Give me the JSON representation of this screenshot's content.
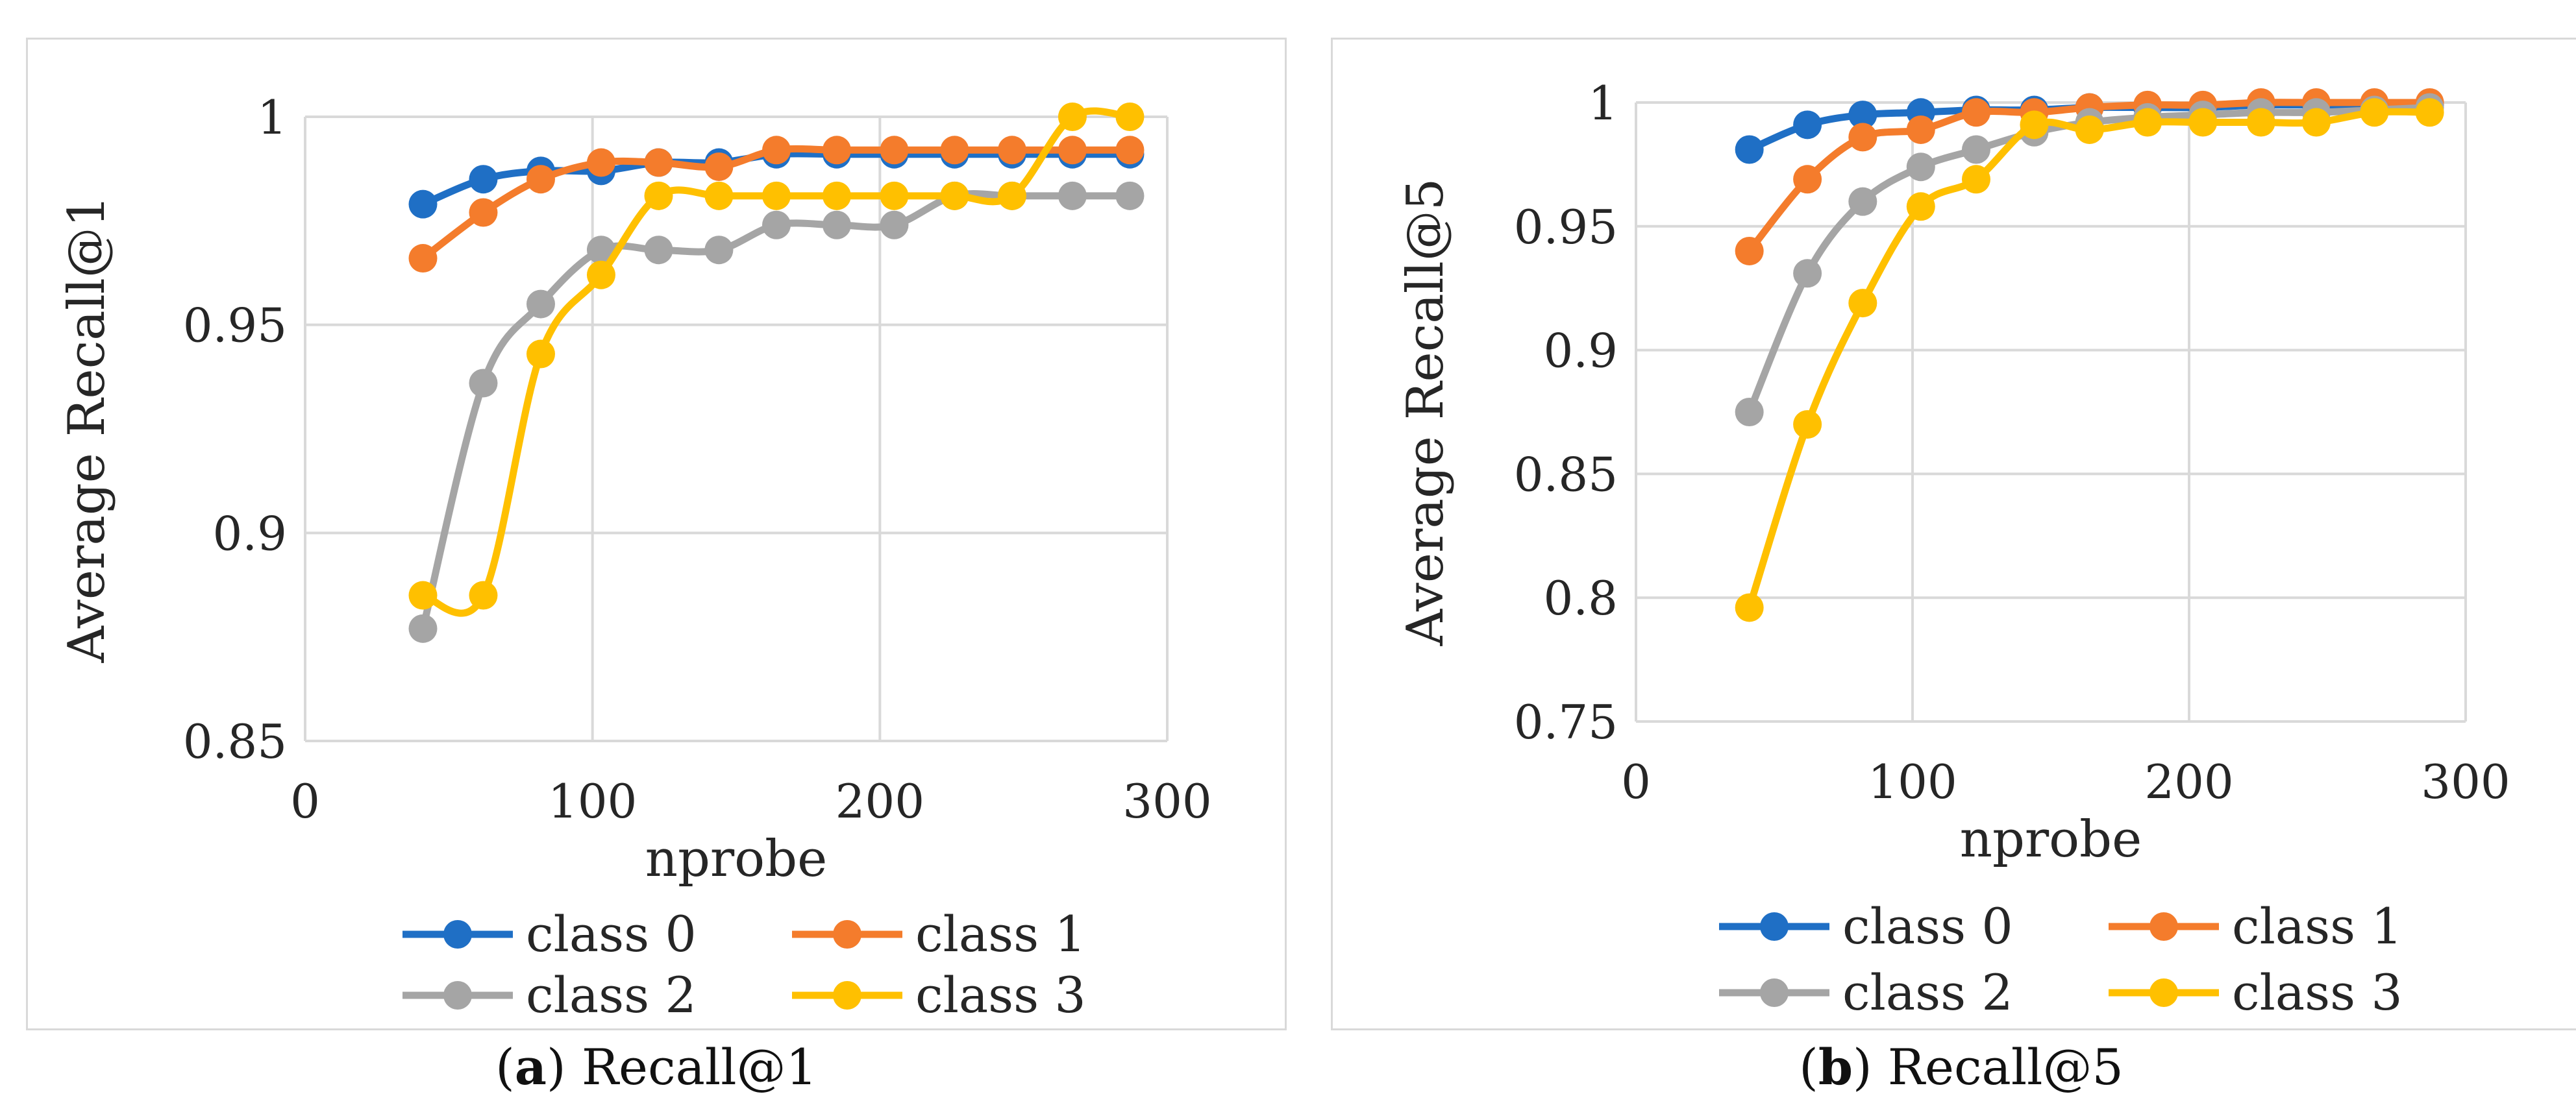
{
  "colors": {
    "class0": "#1f6fc5",
    "class1": "#f47c2c",
    "class2": "#a5a5a5",
    "class3": "#ffc000",
    "grid": "#d9d9d9"
  },
  "panels": [
    {
      "label": "a",
      "caption": "Recall@1"
    },
    {
      "label": "b",
      "caption": "Recall@5"
    }
  ],
  "chart_data": [
    {
      "type": "line",
      "title": "",
      "xlabel": "nprobe",
      "ylabel": "Average Recall@1",
      "xlim": [
        0,
        300
      ],
      "ylim": [
        0.85,
        1
      ],
      "xticks": [
        0,
        100,
        200,
        300
      ],
      "xtick_labels": [
        "0",
        "100",
        "200",
        "300"
      ],
      "yticks": [
        0.85,
        0.9,
        0.95,
        1
      ],
      "ytick_labels": [
        "0.85",
        "0.9",
        "0.95",
        "1"
      ],
      "grid": true,
      "legend": "bottom",
      "x": [
        41,
        62,
        82,
        103,
        123,
        144,
        164,
        185,
        205,
        226,
        246,
        267,
        287
      ],
      "series": [
        {
          "name": "class 0",
          "values": [
            0.979,
            0.985,
            0.987,
            0.987,
            0.989,
            0.989,
            0.991,
            0.991,
            0.991,
            0.991,
            0.991,
            0.991,
            0.991
          ]
        },
        {
          "name": "class 1",
          "values": [
            0.966,
            0.977,
            0.985,
            0.989,
            0.989,
            0.988,
            0.992,
            0.992,
            0.992,
            0.992,
            0.992,
            0.992,
            0.992
          ]
        },
        {
          "name": "class 2",
          "values": [
            0.877,
            0.936,
            0.955,
            0.968,
            0.968,
            0.968,
            0.974,
            0.974,
            0.974,
            0.981,
            0.981,
            0.981,
            0.981
          ]
        },
        {
          "name": "class 3",
          "values": [
            0.885,
            0.885,
            0.943,
            0.962,
            0.981,
            0.981,
            0.981,
            0.981,
            0.981,
            0.981,
            0.981,
            1.0,
            1.0
          ]
        }
      ]
    },
    {
      "type": "line",
      "title": "",
      "xlabel": "nprobe",
      "ylabel": "Average Recall@5",
      "xlim": [
        0,
        300
      ],
      "ylim": [
        0.75,
        1
      ],
      "xticks": [
        0,
        100,
        200,
        300
      ],
      "xtick_labels": [
        "0",
        "100",
        "200",
        "300"
      ],
      "yticks": [
        0.75,
        0.8,
        0.85,
        0.9,
        0.95,
        1
      ],
      "ytick_labels": [
        "0.75",
        "0.8",
        "0.85",
        "0.9",
        "0.95",
        "1"
      ],
      "grid": true,
      "legend": "bottom",
      "x": [
        41,
        62,
        82,
        103,
        123,
        144,
        164,
        185,
        205,
        226,
        246,
        267,
        287
      ],
      "series": [
        {
          "name": "class 0",
          "values": [
            0.981,
            0.991,
            0.995,
            0.996,
            0.997,
            0.997,
            0.998,
            0.998,
            0.998,
            0.999,
            0.999,
            0.999,
            0.999
          ]
        },
        {
          "name": "class 1",
          "values": [
            0.94,
            0.969,
            0.986,
            0.989,
            0.996,
            0.996,
            0.998,
            0.999,
            0.999,
            1.0,
            1.0,
            1.0,
            1.0
          ]
        },
        {
          "name": "class 2",
          "values": [
            0.875,
            0.931,
            0.96,
            0.974,
            0.981,
            0.988,
            0.992,
            0.994,
            0.995,
            0.996,
            0.996,
            0.997,
            0.998
          ]
        },
        {
          "name": "class 3",
          "values": [
            0.796,
            0.87,
            0.919,
            0.958,
            0.969,
            0.991,
            0.989,
            0.992,
            0.992,
            0.992,
            0.992,
            0.996,
            0.996
          ]
        }
      ]
    }
  ]
}
